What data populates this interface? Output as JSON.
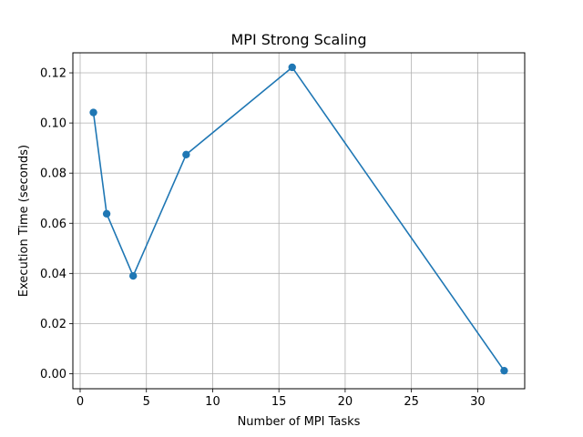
{
  "chart_data": {
    "type": "line",
    "title": "MPI Strong Scaling",
    "xlabel": "Number of MPI Tasks",
    "ylabel": "Execution Time (seconds)",
    "xlim": [
      -0.55,
      33.55
    ],
    "ylim": [
      -0.006,
      0.128
    ],
    "grid": true,
    "x_ticks": [
      0,
      5,
      10,
      15,
      20,
      25,
      30
    ],
    "x_tick_labels": [
      "0",
      "5",
      "10",
      "15",
      "20",
      "25",
      "30"
    ],
    "y_ticks": [
      0.0,
      0.02,
      0.04,
      0.06,
      0.08,
      0.1,
      0.12
    ],
    "y_tick_labels": [
      "0.00",
      "0.02",
      "0.04",
      "0.06",
      "0.08",
      "0.10",
      "0.12"
    ],
    "series": [
      {
        "color": "#1f77b4",
        "marker": "circle",
        "x": [
          1,
          2,
          4,
          8,
          16,
          32
        ],
        "y": [
          0.1042,
          0.0638,
          0.039,
          0.0874,
          0.1222,
          0.0012
        ]
      }
    ]
  }
}
